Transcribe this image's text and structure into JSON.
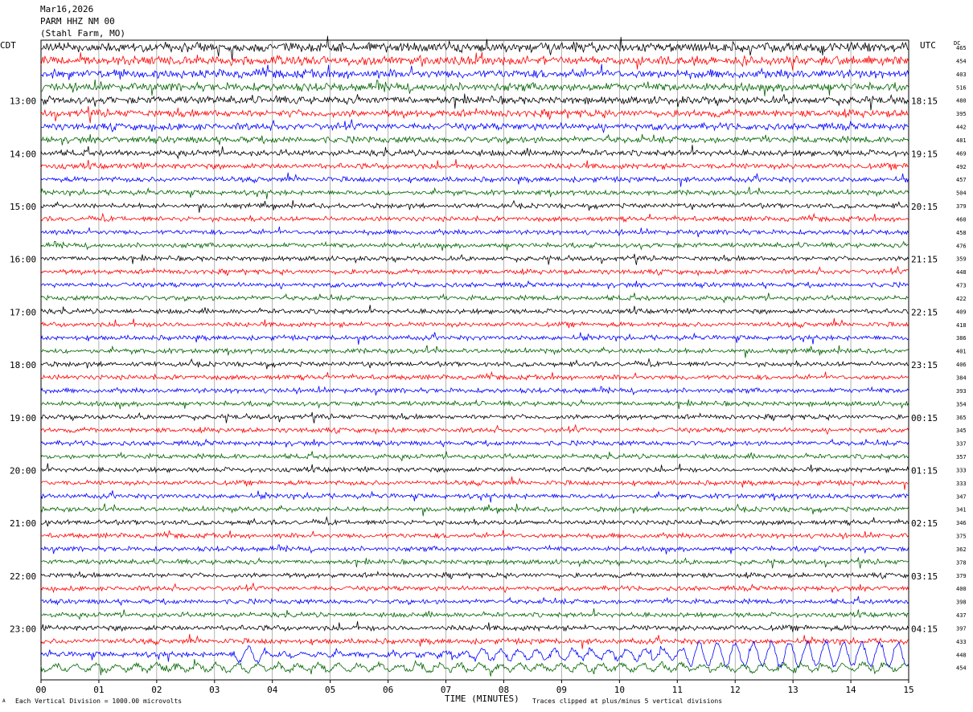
{
  "header": {
    "date": "Mar16,2026",
    "station": "PARM HHZ NM 00",
    "location": "(Stahl Farm, MO)"
  },
  "left_tz": "CDT",
  "right_tz": "UTC",
  "dc_label": "DC",
  "footer": {
    "scale_note": "Each Vertical Division = 1000.00 microvolts",
    "clip_note": "Traces clipped at plus/minus 5 vertical divisions",
    "corner_mark": "A"
  },
  "colors": {
    "black": "#000000",
    "red": "#ff0000",
    "blue": "#0000ff",
    "green": "#006400",
    "grid": "#808080"
  },
  "chart_data": {
    "type": "line",
    "title": "PARM HHZ NM 00 (Stahl Farm, MO) Mar16,2026",
    "xlabel": "TIME (MINUTES)",
    "xlim": [
      0,
      15
    ],
    "x_ticks": [
      "00",
      "01",
      "02",
      "03",
      "04",
      "05",
      "06",
      "07",
      "08",
      "09",
      "10",
      "11",
      "12",
      "13",
      "14",
      "15"
    ],
    "left_hour_labels": [
      "13:00",
      "14:00",
      "15:00",
      "16:00",
      "17:00",
      "18:00",
      "19:00",
      "20:00",
      "21:00",
      "22:00",
      "23:00"
    ],
    "right_hour_labels": [
      "18:15",
      "19:15",
      "20:15",
      "21:15",
      "22:15",
      "23:15",
      "00:15",
      "01:15",
      "02:15",
      "03:15",
      "04:15"
    ],
    "trace_colors_cycle": [
      "black",
      "red",
      "blue",
      "green"
    ],
    "traces_per_hour": 4,
    "dc_offsets": [
      465,
      454,
      403,
      516,
      480,
      395,
      442,
      481,
      469,
      492,
      457,
      504,
      379,
      460,
      458,
      476,
      359,
      448,
      473,
      422,
      409,
      418,
      386,
      401,
      406,
      384,
      393,
      354,
      365,
      345,
      337,
      357,
      333,
      333,
      347,
      341,
      346,
      375,
      362,
      378,
      379,
      400,
      398,
      437,
      397,
      433,
      448,
      454
    ]
  }
}
